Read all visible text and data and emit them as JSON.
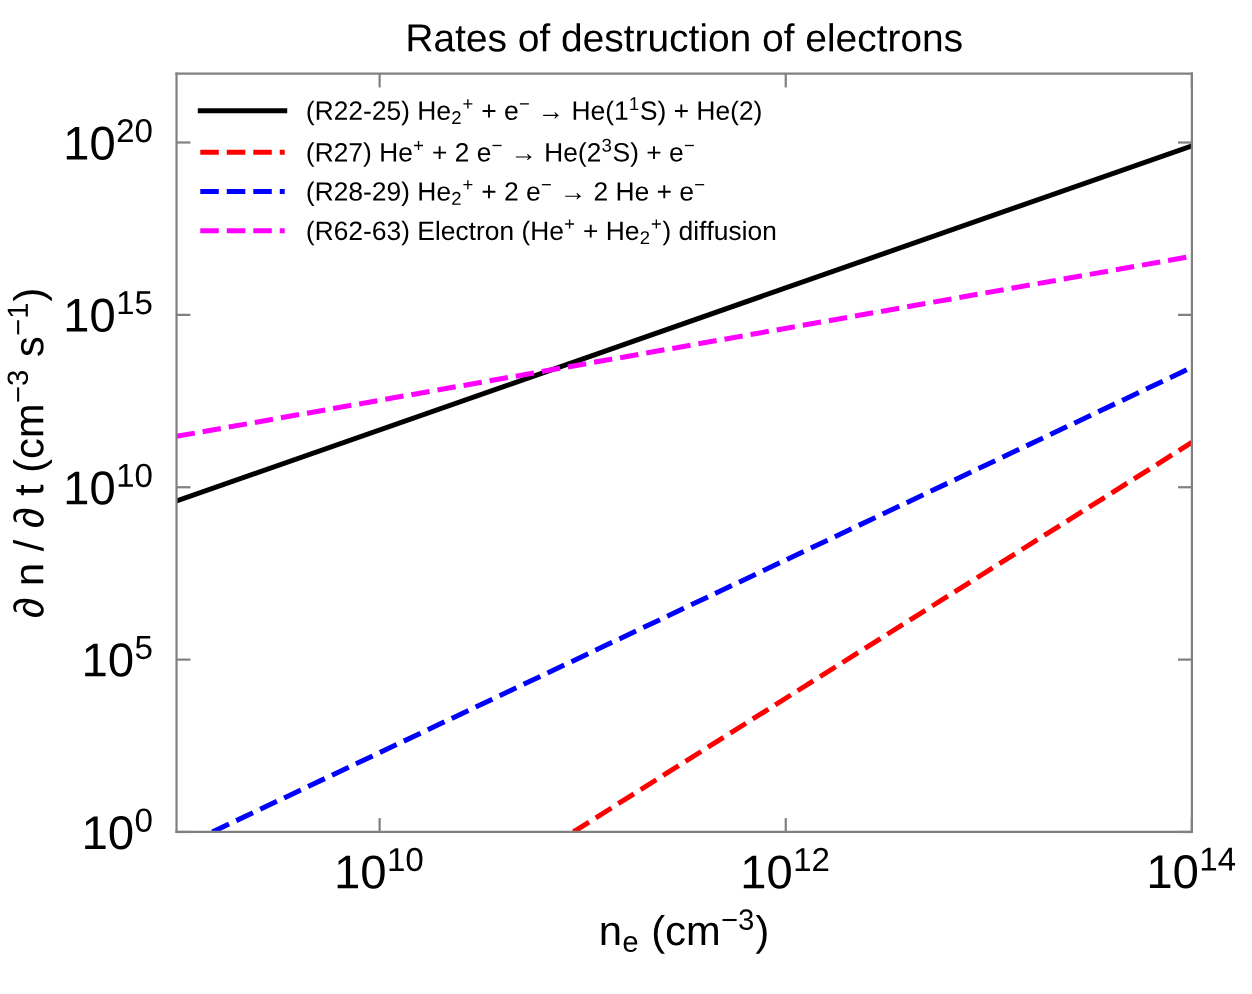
{
  "chart_data": {
    "type": "line",
    "title": "Rates of destruction of electrons",
    "xlabel": "n$_{e}$ (cm$^{−3}$)",
    "ylabel": "∂ n / ∂ t (cm$^{−3}$ s$^{−1}$)",
    "log": "xy",
    "xlim": [
      1000000000.0,
      100000000000000.0
    ],
    "ylim": [
      1,
      1e+22
    ],
    "xticks": [
      {
        "value": 10000000000.0,
        "label": "10$^{10}$"
      },
      {
        "value": 1000000000000.0,
        "label": "10$^{12}$"
      },
      {
        "value": 100000000000000.0,
        "label": "10$^{14}$"
      }
    ],
    "yticks": [
      {
        "value": 1,
        "label": "10$^{0}$"
      },
      {
        "value": 100000.0,
        "label": "10$^{5}$"
      },
      {
        "value": 10000000000.0,
        "label": "10$^{10}$"
      },
      {
        "value": 1000000000000000.0,
        "label": "10$^{15}$"
      },
      {
        "value": 1e+20,
        "label": "10$^{20}$"
      }
    ],
    "grid": false,
    "legend": "top left",
    "series": [
      {
        "name": "(R22-25) He$_{2}$$^{+}$ + e$^{−}$ → He(1$^{1}$S) + He(2)",
        "color": "#000000",
        "line_style": "solid",
        "x": [
          1000000000.0,
          100000000000000.0
        ],
        "values": [
          4000000000.0,
          8e+19
        ]
      },
      {
        "name": "(R27) He$^{+}$ + 2 e$^{−}$ → He(2$^{3}$S) + e$^{−}$",
        "color": "#ff0000",
        "line_style": "dashed",
        "x": [
          90000000000.0,
          100000000000000.0
        ],
        "values": [
          1,
          200000000000.0
        ]
      },
      {
        "name": "(R28-29) He$_{2}$$^{+}$ + 2 e$^{−}$ → 2 He + e$^{−}$",
        "color": "#0000ff",
        "line_style": "dashed",
        "x": [
          1500000000.0,
          100000000000000.0
        ],
        "values": [
          1,
          30000000000000.0
        ]
      },
      {
        "name": "(R62-63) Electron (He$^{+}$ + He$_{2}$$^{+}$) diffusion",
        "color": "#ff00ff",
        "line_style": "dashed",
        "x": [
          1000000000.0,
          100000000000000.0
        ],
        "values": [
          300000000000.0,
          5e+16
        ]
      }
    ]
  }
}
